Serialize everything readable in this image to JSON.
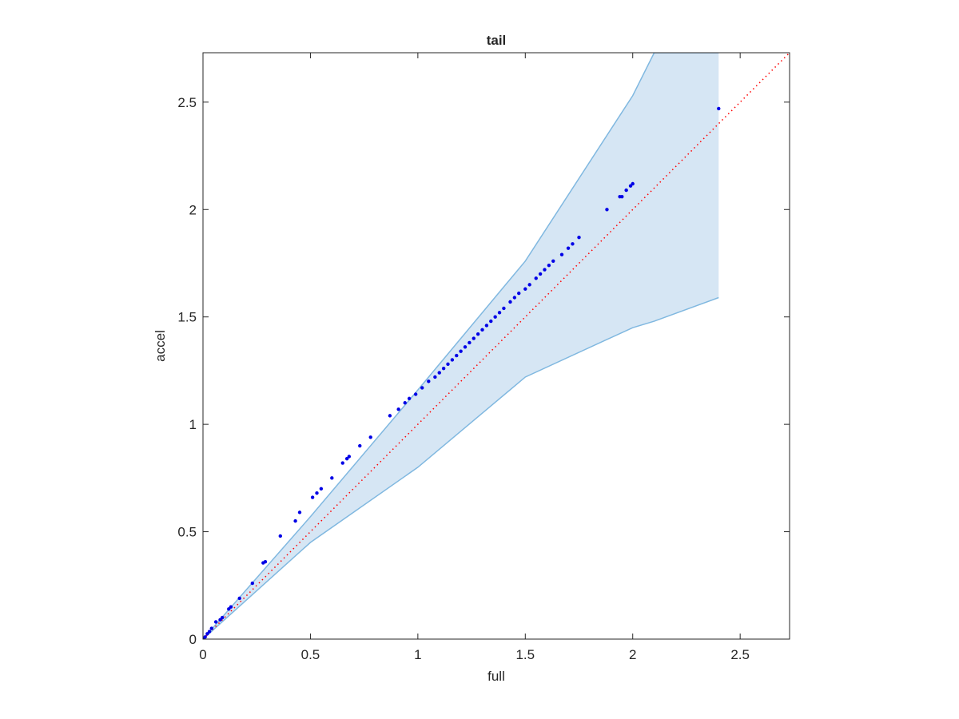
{
  "chart_data": {
    "type": "scatter",
    "title": "tail",
    "xlabel": "full",
    "ylabel": "accel",
    "xlim": [
      0,
      2.73
    ],
    "ylim": [
      0,
      2.73
    ],
    "xticks": [
      0,
      0.5,
      1,
      1.5,
      2,
      2.5
    ],
    "yticks": [
      0,
      0.5,
      1,
      1.5,
      2,
      2.5
    ],
    "grid": false,
    "band": {
      "color": "#d6e6f4",
      "edge_color": "#80b8e0",
      "x": [
        0,
        0.5,
        1,
        1.5,
        2,
        2.1,
        2.4
      ],
      "upper": [
        0,
        0.57,
        1.16,
        1.76,
        2.53,
        2.73,
        2.73
      ],
      "lower": [
        0,
        0.45,
        0.8,
        1.22,
        1.45,
        1.48,
        1.59
      ]
    },
    "reference_line": {
      "color": "#ff0000",
      "x": [
        0,
        2.73
      ],
      "y": [
        0,
        2.73
      ]
    },
    "points": {
      "color": "#0000e6",
      "x": [
        2.4,
        2.0,
        1.99,
        1.97,
        1.95,
        1.94,
        1.88,
        1.75,
        1.72,
        1.7,
        1.67,
        1.63,
        1.61,
        1.59,
        1.57,
        1.55,
        1.52,
        1.5,
        1.47,
        1.45,
        1.43,
        1.4,
        1.38,
        1.36,
        1.34,
        1.32,
        1.3,
        1.28,
        1.26,
        1.24,
        1.22,
        1.2,
        1.18,
        1.16,
        1.14,
        1.12,
        1.1,
        1.08,
        1.05,
        1.02,
        0.99,
        0.96,
        0.94,
        0.91,
        0.87,
        0.78,
        0.73,
        0.68,
        0.67,
        0.65,
        0.6,
        0.55,
        0.53,
        0.51,
        0.45,
        0.43,
        0.36,
        0.29,
        0.28,
        0.23,
        0.17,
        0.13,
        0.12,
        0.09,
        0.08,
        0.06,
        0.04,
        0.03,
        0.02,
        0.01,
        0
      ],
      "y": [
        2.47,
        2.12,
        2.11,
        2.09,
        2.06,
        2.06,
        2.0,
        1.87,
        1.84,
        1.82,
        1.79,
        1.76,
        1.74,
        1.72,
        1.7,
        1.68,
        1.65,
        1.63,
        1.61,
        1.59,
        1.57,
        1.54,
        1.52,
        1.5,
        1.48,
        1.46,
        1.44,
        1.42,
        1.4,
        1.38,
        1.36,
        1.34,
        1.32,
        1.3,
        1.28,
        1.26,
        1.24,
        1.22,
        1.2,
        1.17,
        1.14,
        1.12,
        1.1,
        1.07,
        1.04,
        0.94,
        0.9,
        0.85,
        0.84,
        0.82,
        0.75,
        0.7,
        0.68,
        0.66,
        0.59,
        0.55,
        0.48,
        0.36,
        0.355,
        0.26,
        0.19,
        0.15,
        0.14,
        0.1,
        0.09,
        0.08,
        0.05,
        0.035,
        0.025,
        0.01,
        0
      ]
    }
  }
}
